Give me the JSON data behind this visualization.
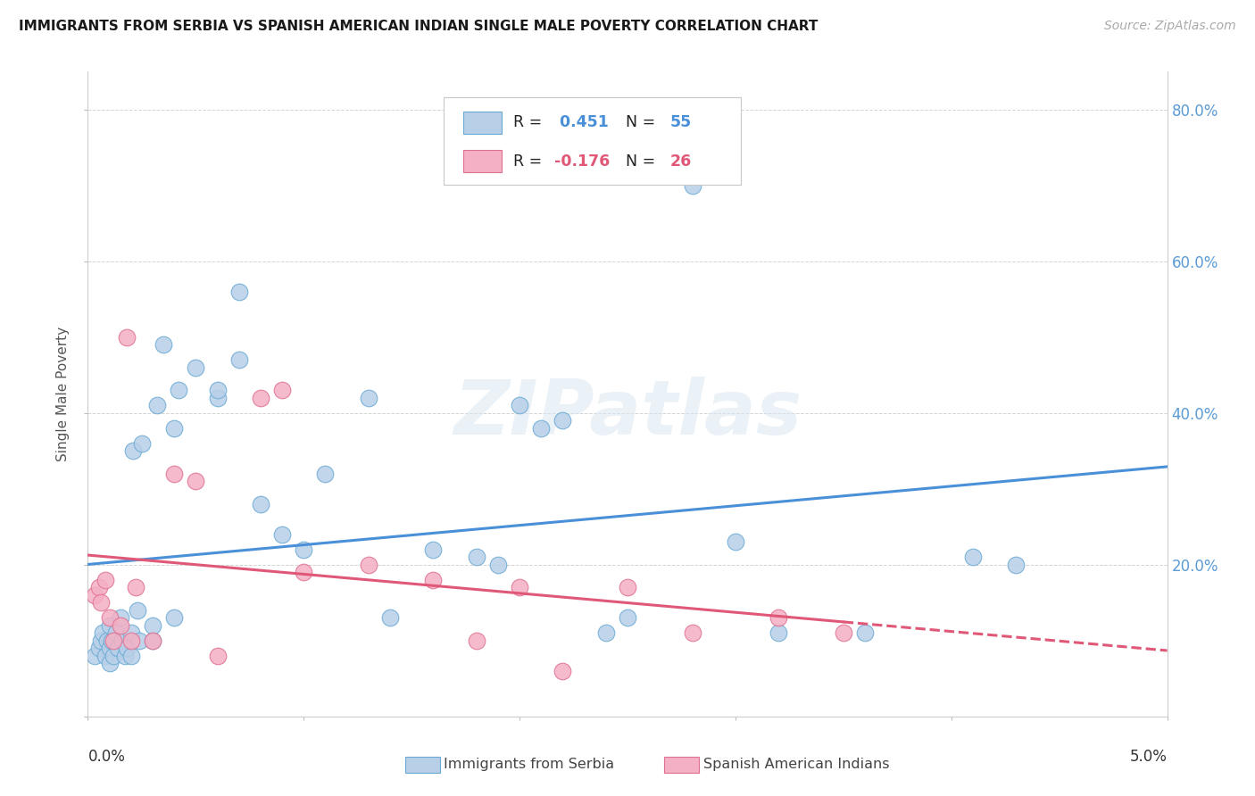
{
  "title": "IMMIGRANTS FROM SERBIA VS SPANISH AMERICAN INDIAN SINGLE MALE POVERTY CORRELATION CHART",
  "source": "Source: ZipAtlas.com",
  "ylabel": "Single Male Poverty",
  "xlim": [
    0.0,
    0.05
  ],
  "ylim": [
    0.0,
    0.85
  ],
  "blue_r": 0.451,
  "blue_n": 55,
  "pink_r": -0.176,
  "pink_n": 26,
  "blue_fill": "#b8cfe8",
  "blue_edge": "#6aaad4",
  "pink_fill": "#f4b0c4",
  "pink_edge": "#e07090",
  "blue_line": "#4a90d9",
  "pink_line": "#e05878",
  "grid_color": "#d0d0d0",
  "right_tick_color": "#5b9bd5",
  "watermark_color": "#dce8f2",
  "blue_x": [
    0.0003,
    0.0005,
    0.0006,
    0.0007,
    0.0008,
    0.0009,
    0.001,
    0.001,
    0.001,
    0.0011,
    0.0012,
    0.0013,
    0.0014,
    0.0015,
    0.0016,
    0.0017,
    0.0018,
    0.002,
    0.002,
    0.0021,
    0.0023,
    0.0024,
    0.0025,
    0.003,
    0.003,
    0.0032,
    0.0035,
    0.004,
    0.004,
    0.0042,
    0.005,
    0.006,
    0.006,
    0.007,
    0.007,
    0.008,
    0.009,
    0.01,
    0.011,
    0.013,
    0.014,
    0.016,
    0.018,
    0.019,
    0.02,
    0.021,
    0.022,
    0.024,
    0.025,
    0.028,
    0.03,
    0.032,
    0.036,
    0.041,
    0.043
  ],
  "blue_y": [
    0.08,
    0.09,
    0.1,
    0.11,
    0.08,
    0.1,
    0.12,
    0.09,
    0.07,
    0.1,
    0.08,
    0.11,
    0.09,
    0.13,
    0.1,
    0.08,
    0.09,
    0.11,
    0.08,
    0.35,
    0.14,
    0.1,
    0.36,
    0.1,
    0.12,
    0.41,
    0.49,
    0.13,
    0.38,
    0.43,
    0.46,
    0.42,
    0.43,
    0.56,
    0.47,
    0.28,
    0.24,
    0.22,
    0.32,
    0.42,
    0.13,
    0.22,
    0.21,
    0.2,
    0.41,
    0.38,
    0.39,
    0.11,
    0.13,
    0.7,
    0.23,
    0.11,
    0.11,
    0.21,
    0.2
  ],
  "pink_x": [
    0.0003,
    0.0005,
    0.0006,
    0.0008,
    0.001,
    0.0012,
    0.0015,
    0.0018,
    0.002,
    0.0022,
    0.003,
    0.004,
    0.005,
    0.006,
    0.008,
    0.009,
    0.01,
    0.013,
    0.016,
    0.018,
    0.02,
    0.022,
    0.025,
    0.028,
    0.032,
    0.035
  ],
  "pink_y": [
    0.16,
    0.17,
    0.15,
    0.18,
    0.13,
    0.1,
    0.12,
    0.5,
    0.1,
    0.17,
    0.1,
    0.32,
    0.31,
    0.08,
    0.42,
    0.43,
    0.19,
    0.2,
    0.18,
    0.1,
    0.17,
    0.06,
    0.17,
    0.11,
    0.13,
    0.11
  ],
  "watermark": "ZIPatlas"
}
